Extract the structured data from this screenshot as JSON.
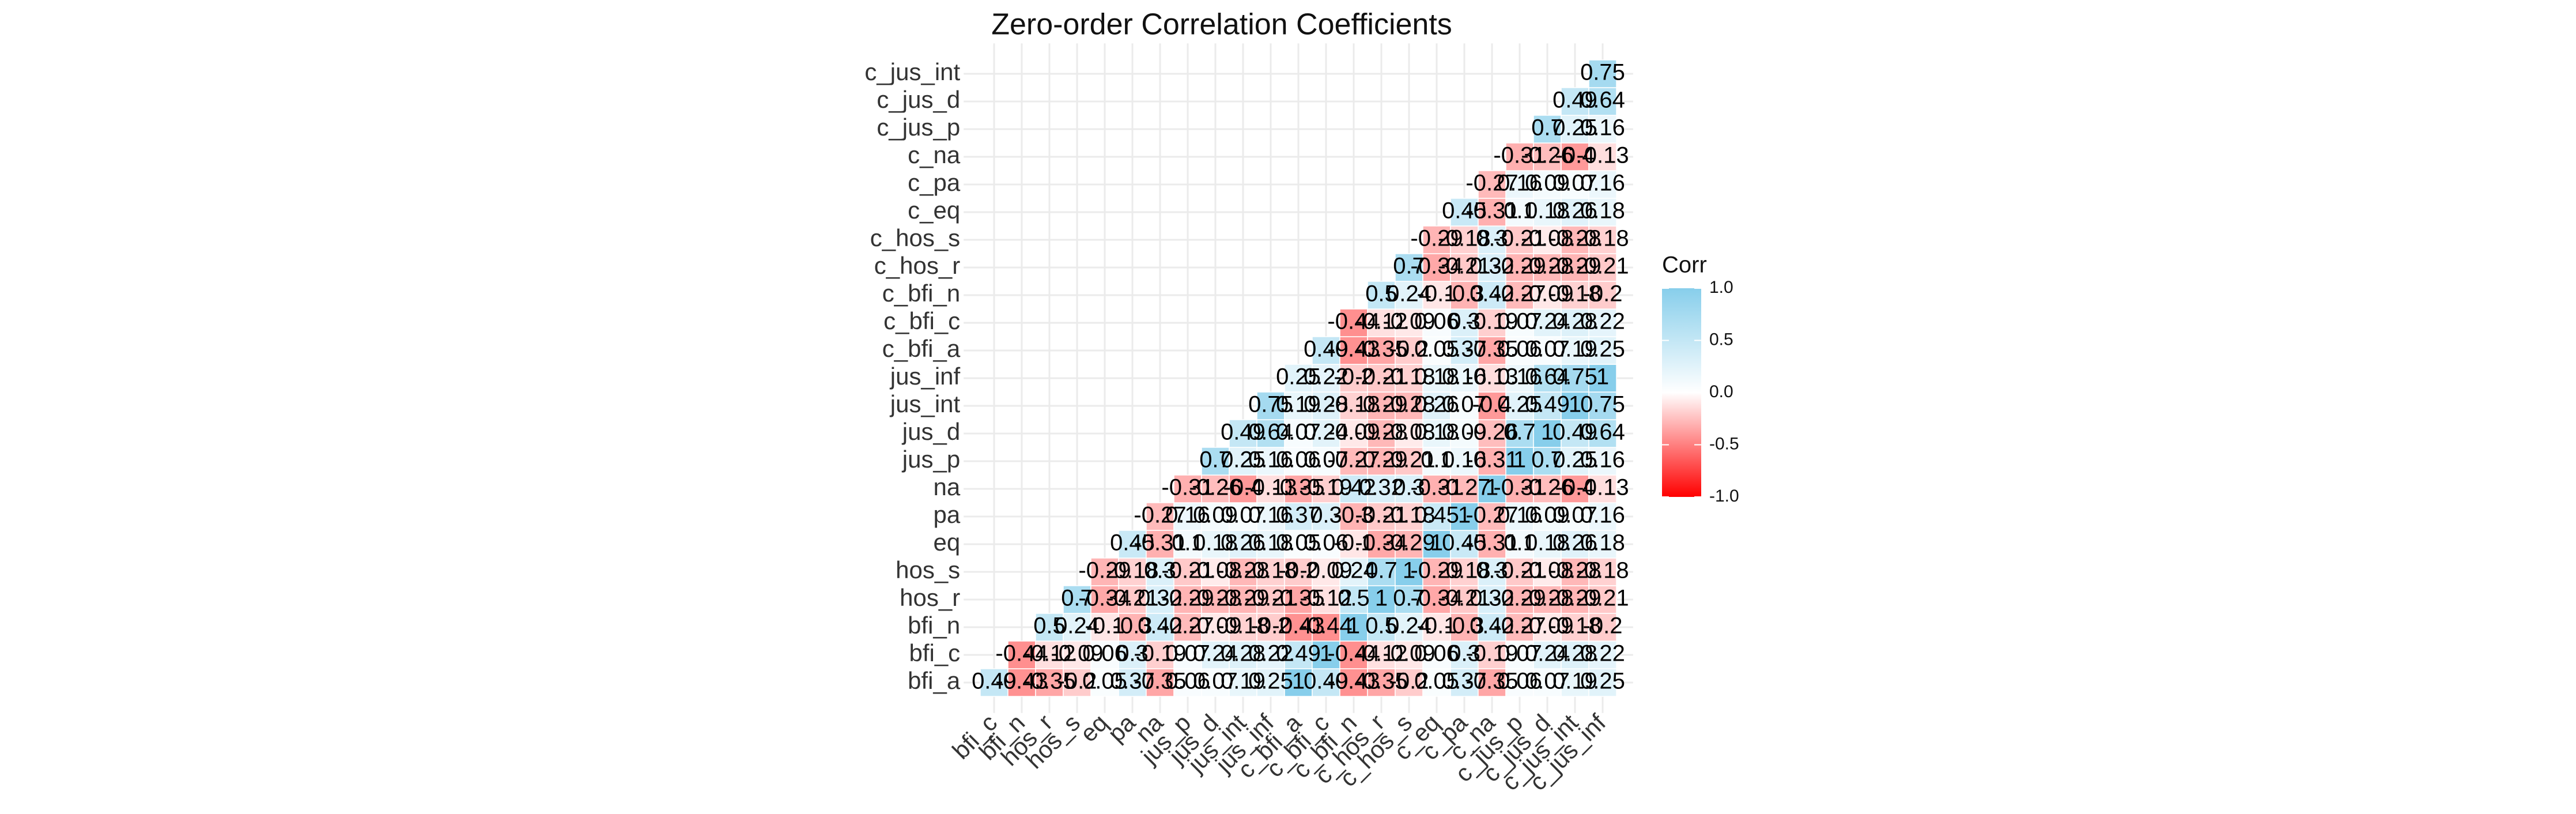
{
  "chart_data": {
    "type": "heatmap",
    "title": "Zero-order Correlation Coefficients",
    "legend_title": "Corr",
    "x": [
      "bfi_c",
      "bfi_n",
      "hos_r",
      "hos_s",
      "eq",
      "pa",
      "na",
      "jus_p",
      "jus_d",
      "jus_int",
      "jus_inf",
      "c_bfi_a",
      "c_bfi_c",
      "c_bfi_n",
      "c_hos_r",
      "c_hos_s",
      "c_eq",
      "c_pa",
      "c_na",
      "c_jus_p",
      "c_jus_d",
      "c_jus_int",
      "c_jus_inf"
    ],
    "y": [
      "bfi_a",
      "bfi_c",
      "bfi_n",
      "hos_r",
      "hos_s",
      "eq",
      "pa",
      "na",
      "jus_p",
      "jus_d",
      "jus_int",
      "jus_inf",
      "c_bfi_a",
      "c_bfi_c",
      "c_bfi_n",
      "c_hos_r",
      "c_hos_s",
      "c_eq",
      "c_pa",
      "c_na",
      "c_jus_p",
      "c_jus_d",
      "c_jus_int"
    ],
    "values": [
      [
        0.49,
        -0.43,
        -0.35,
        -0.2,
        0.05,
        0.37,
        -0.35,
        0.06,
        0.07,
        0.19,
        0.25,
        1,
        0.49,
        -0.43,
        -0.35,
        -0.2,
        0.05,
        0.37,
        -0.35,
        0.06,
        0.07,
        0.19,
        0.25
      ],
      [
        null,
        -0.44,
        -0.12,
        -0.09,
        0.06,
        0.3,
        -0.19,
        0.07,
        0.24,
        0.28,
        0.22,
        0.49,
        1,
        -0.44,
        -0.12,
        -0.09,
        0.06,
        0.3,
        -0.19,
        0.07,
        0.24,
        0.28,
        0.22
      ],
      [
        null,
        null,
        0.5,
        0.24,
        -0.1,
        -0.3,
        0.42,
        -0.27,
        -0.09,
        -0.18,
        -0.2,
        -0.43,
        -0.44,
        1,
        0.5,
        0.24,
        -0.1,
        -0.3,
        0.42,
        -0.27,
        -0.09,
        -0.18,
        -0.2
      ],
      [
        null,
        null,
        null,
        0.7,
        -0.34,
        -0.21,
        0.32,
        -0.29,
        -0.28,
        -0.29,
        -0.21,
        -0.35,
        -0.12,
        0.5,
        1,
        0.7,
        -0.34,
        -0.21,
        0.32,
        -0.29,
        -0.28,
        -0.29,
        -0.21
      ],
      [
        null,
        null,
        null,
        null,
        -0.29,
        -0.18,
        0.3,
        -0.21,
        -0.08,
        -0.28,
        -0.18,
        -0.2,
        -0.09,
        0.24,
        0.7,
        1,
        -0.29,
        -0.18,
        0.3,
        -0.21,
        -0.08,
        -0.28,
        -0.18
      ],
      [
        null,
        null,
        null,
        null,
        null,
        0.45,
        -0.31,
        0.1,
        0.18,
        0.26,
        0.18,
        0.05,
        0.06,
        -0.1,
        -0.34,
        -0.29,
        1,
        0.45,
        -0.31,
        0.1,
        0.18,
        0.26,
        0.18
      ],
      [
        null,
        null,
        null,
        null,
        null,
        null,
        -0.27,
        0.16,
        0.09,
        0.07,
        0.16,
        0.37,
        0.3,
        -0.3,
        -0.21,
        -0.18,
        0.45,
        1,
        -0.27,
        0.16,
        0.09,
        0.07,
        0.16
      ],
      [
        null,
        null,
        null,
        null,
        null,
        null,
        null,
        -0.31,
        -0.26,
        -0.4,
        -0.13,
        -0.35,
        -0.19,
        0.42,
        0.32,
        0.3,
        -0.31,
        -0.27,
        1,
        -0.31,
        -0.26,
        -0.4,
        -0.13
      ],
      [
        null,
        null,
        null,
        null,
        null,
        null,
        null,
        null,
        0.7,
        0.25,
        0.16,
        0.06,
        0.07,
        -0.27,
        -0.29,
        -0.21,
        0.1,
        0.16,
        -0.31,
        1,
        0.7,
        0.25,
        0.16
      ],
      [
        null,
        null,
        null,
        null,
        null,
        null,
        null,
        null,
        null,
        0.49,
        0.64,
        0.07,
        0.24,
        -0.09,
        -0.28,
        -0.08,
        0.18,
        0.09,
        -0.26,
        0.7,
        1,
        0.49,
        0.64
      ],
      [
        null,
        null,
        null,
        null,
        null,
        null,
        null,
        null,
        null,
        null,
        0.75,
        0.19,
        0.28,
        -0.18,
        -0.29,
        -0.28,
        0.26,
        0.07,
        -0.4,
        0.25,
        0.49,
        1,
        0.75
      ],
      [
        null,
        null,
        null,
        null,
        null,
        null,
        null,
        null,
        null,
        null,
        null,
        0.25,
        0.22,
        -0.2,
        -0.21,
        -0.18,
        0.18,
        0.16,
        -0.13,
        0.16,
        0.64,
        0.75,
        1
      ],
      [
        null,
        null,
        null,
        null,
        null,
        null,
        null,
        null,
        null,
        null,
        null,
        null,
        0.49,
        -0.43,
        -0.35,
        -0.2,
        0.05,
        0.37,
        -0.35,
        0.06,
        0.07,
        0.19,
        0.25
      ],
      [
        null,
        null,
        null,
        null,
        null,
        null,
        null,
        null,
        null,
        null,
        null,
        null,
        null,
        -0.44,
        -0.12,
        -0.09,
        0.06,
        0.3,
        -0.19,
        0.07,
        0.24,
        0.28,
        0.22
      ],
      [
        null,
        null,
        null,
        null,
        null,
        null,
        null,
        null,
        null,
        null,
        null,
        null,
        null,
        null,
        0.5,
        0.24,
        -0.1,
        -0.3,
        0.42,
        -0.27,
        -0.09,
        -0.18,
        -0.2
      ],
      [
        null,
        null,
        null,
        null,
        null,
        null,
        null,
        null,
        null,
        null,
        null,
        null,
        null,
        null,
        null,
        0.7,
        -0.34,
        -0.21,
        0.32,
        -0.29,
        -0.28,
        -0.29,
        -0.21
      ],
      [
        null,
        null,
        null,
        null,
        null,
        null,
        null,
        null,
        null,
        null,
        null,
        null,
        null,
        null,
        null,
        null,
        -0.29,
        -0.18,
        0.3,
        -0.21,
        -0.08,
        -0.28,
        -0.18
      ],
      [
        null,
        null,
        null,
        null,
        null,
        null,
        null,
        null,
        null,
        null,
        null,
        null,
        null,
        null,
        null,
        null,
        null,
        0.45,
        -0.31,
        0.1,
        0.18,
        0.26,
        0.18
      ],
      [
        null,
        null,
        null,
        null,
        null,
        null,
        null,
        null,
        null,
        null,
        null,
        null,
        null,
        null,
        null,
        null,
        null,
        null,
        -0.27,
        0.16,
        0.09,
        0.07,
        0.16
      ],
      [
        null,
        null,
        null,
        null,
        null,
        null,
        null,
        null,
        null,
        null,
        null,
        null,
        null,
        null,
        null,
        null,
        null,
        null,
        null,
        -0.31,
        -0.26,
        -0.4,
        -0.13
      ],
      [
        null,
        null,
        null,
        null,
        null,
        null,
        null,
        null,
        null,
        null,
        null,
        null,
        null,
        null,
        null,
        null,
        null,
        null,
        null,
        null,
        0.7,
        0.25,
        0.16
      ],
      [
        null,
        null,
        null,
        null,
        null,
        null,
        null,
        null,
        null,
        null,
        null,
        null,
        null,
        null,
        null,
        null,
        null,
        null,
        null,
        null,
        null,
        0.49,
        0.64
      ],
      [
        null,
        null,
        null,
        null,
        null,
        null,
        null,
        null,
        null,
        null,
        null,
        null,
        null,
        null,
        null,
        null,
        null,
        null,
        null,
        null,
        null,
        null,
        0.75
      ]
    ],
    "clim": [
      -1,
      1
    ],
    "cticks": [
      {
        "value": 1,
        "label": "1.0"
      },
      0.5,
      {
        "value": 0,
        "label": "0.0"
      },
      -0.5,
      {
        "value": -1,
        "label": "-1.0"
      }
    ],
    "low_color": "#FF0000",
    "mid_color": "#FFFFFF",
    "high_color": "#87CEEB",
    "grid": true
  }
}
